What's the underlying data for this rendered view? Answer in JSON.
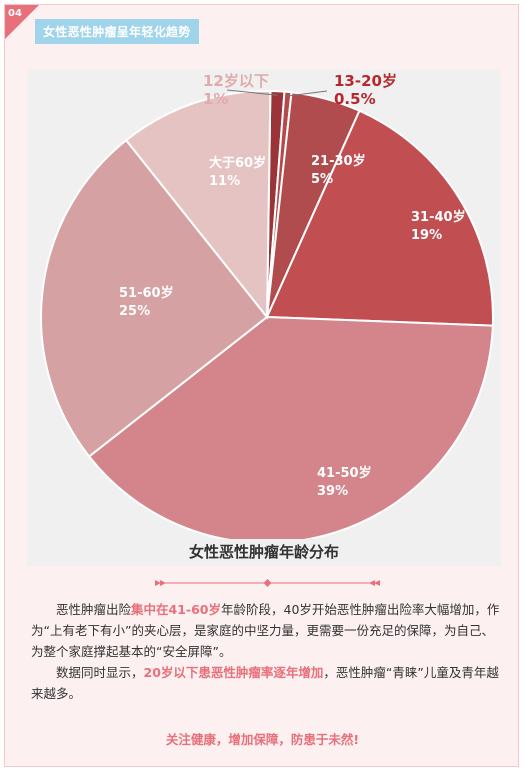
{
  "header": {
    "badge_number": "04",
    "tag_title": "女性恶性肿瘤呈年轻化趋势"
  },
  "colors": {
    "accent": "#e8707a",
    "tag_bg": "#9fd4ea",
    "card_bg": "#fdf0f1"
  },
  "chart_data": {
    "type": "pie",
    "title": "女性恶性肿瘤年龄分布",
    "slices": [
      {
        "name": "12岁以下",
        "value": 1,
        "pct_label": "1%",
        "color": "#9a3438",
        "label_color": "#e3aaad"
      },
      {
        "name": "13-20岁",
        "value": 0.5,
        "pct_label": "0.5%",
        "color": "#b44a4c",
        "label_color": "#b7282e"
      },
      {
        "name": "21-30岁",
        "value": 5,
        "pct_label": "5%",
        "color": "#b14c4e",
        "label_color": "#ffffff"
      },
      {
        "name": "31-40岁",
        "value": 19,
        "pct_label": "19%",
        "color": "#c14f52",
        "label_color": "#ffffff"
      },
      {
        "name": "41-50岁",
        "value": 39,
        "pct_label": "39%",
        "color": "#d3858b",
        "label_color": "#ffffff"
      },
      {
        "name": "51-60岁",
        "value": 25,
        "pct_label": "25%",
        "color": "#d6a1a3",
        "label_color": "#ffffff"
      },
      {
        "name": "大于60岁",
        "value": 11,
        "pct_label": "11%",
        "color": "#e5c3c3",
        "label_color": "#ffffff"
      }
    ]
  },
  "paragraphs": [
    {
      "before": "恶性肿瘤出险",
      "highlight": "集中在41-60岁",
      "after": "年龄阶段，40岁开始恶性肿瘤出险率大幅增加，作为“上有老下有小”的夹心层，是家庭的中坚力量，更需要一份充足的保障，为自己、为整个家庭撑起基本的“安全屏障”。"
    },
    {
      "before": "数据同时显示，",
      "highlight": "20岁以下患恶性肿瘤率逐年增加",
      "after": "，恶性肿瘤“青睐”儿童及青年越来越多。"
    }
  ],
  "slogan": "关注健康，增加保障，防患于未然!"
}
